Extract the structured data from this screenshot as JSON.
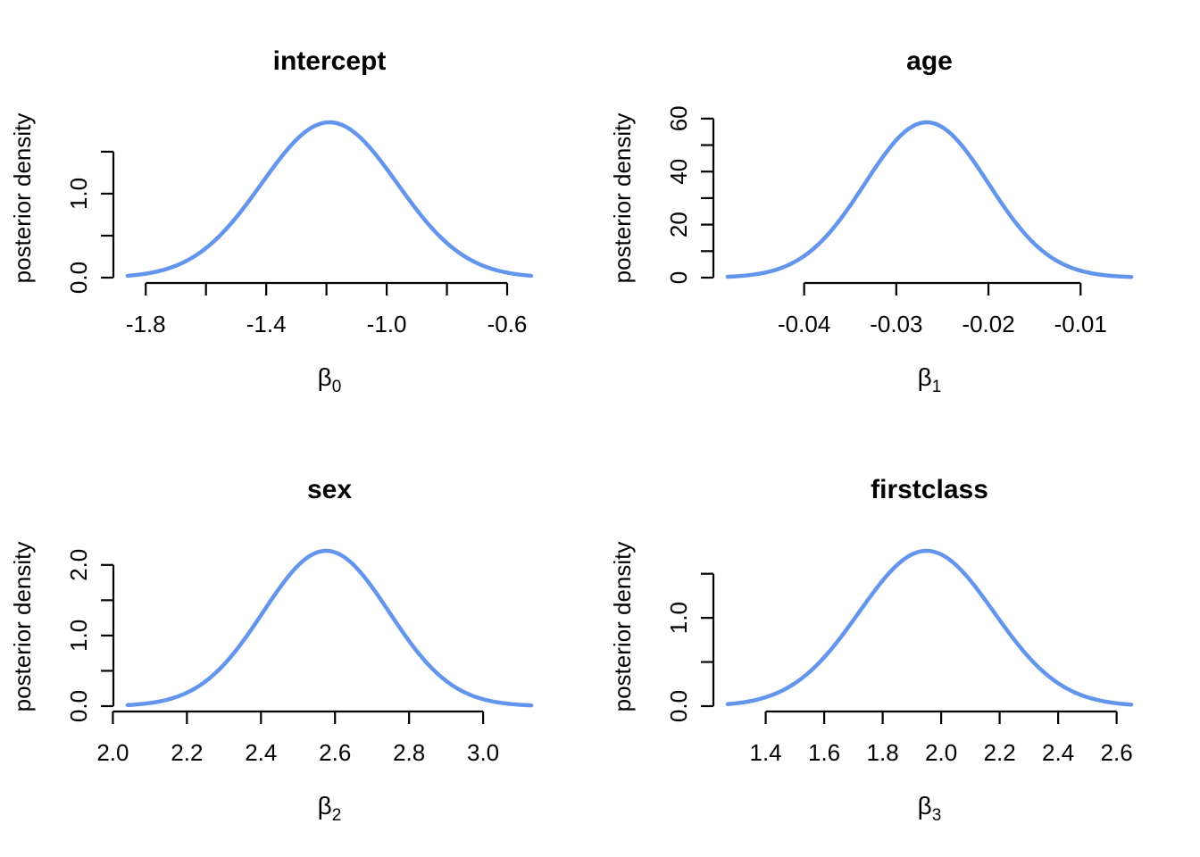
{
  "figure": {
    "layout": "2x2-grid",
    "background": "#ffffff",
    "curve_color": "#6495ED",
    "axis_color": "#000000",
    "text_color": "#000000",
    "shared_ylabel": "posterior density"
  },
  "chart_data": [
    {
      "type": "line",
      "subtype": "posterior-density-curve",
      "title": "intercept",
      "xlabel_base": "β",
      "xlabel_sub": "0",
      "ylabel": "posterior density",
      "legend": "none",
      "grid": "off",
      "x_domain": [
        -1.86,
        -0.52
      ],
      "ylim": [
        0,
        1.85
      ],
      "x_ticks": [
        {
          "value": -1.8,
          "label": "-1.8"
        },
        {
          "value": -1.6,
          "label": null
        },
        {
          "value": -1.4,
          "label": "-1.4"
        },
        {
          "value": -1.2,
          "label": null
        },
        {
          "value": -1.0,
          "label": "-1.0"
        },
        {
          "value": -0.8,
          "label": null
        },
        {
          "value": -0.6,
          "label": "-0.6"
        }
      ],
      "y_ticks": [
        {
          "value": 0.0,
          "label": "0.0"
        },
        {
          "value": 0.5,
          "label": null
        },
        {
          "value": 1.0,
          "label": "1.0"
        },
        {
          "value": 1.5,
          "label": null
        }
      ],
      "density": {
        "mean": -1.19,
        "sd": 0.225,
        "peak": 1.85
      }
    },
    {
      "type": "line",
      "subtype": "posterior-density-curve",
      "title": "age",
      "xlabel_base": "β",
      "xlabel_sub": "1",
      "ylabel": "posterior density",
      "legend": "none",
      "grid": "off",
      "x_domain": [
        -0.0483,
        -0.0045
      ],
      "ylim": [
        0,
        58.6
      ],
      "x_ticks": [
        {
          "value": -0.04,
          "label": "-0.04"
        },
        {
          "value": -0.03,
          "label": "-0.03"
        },
        {
          "value": -0.02,
          "label": "-0.02"
        },
        {
          "value": -0.01,
          "label": "-0.01"
        }
      ],
      "y_ticks": [
        {
          "value": 0,
          "label": "0"
        },
        {
          "value": 10,
          "label": null
        },
        {
          "value": 20,
          "label": "20"
        },
        {
          "value": 30,
          "label": null
        },
        {
          "value": 40,
          "label": "40"
        },
        {
          "value": 50,
          "label": null
        },
        {
          "value": 60,
          "label": "60"
        }
      ],
      "density": {
        "mean": -0.0267,
        "sd": 0.0067,
        "peak": 58.6
      }
    },
    {
      "type": "line",
      "subtype": "posterior-density-curve",
      "title": "sex",
      "xlabel_base": "β",
      "xlabel_sub": "2",
      "ylabel": "posterior density",
      "legend": "none",
      "grid": "off",
      "x_domain": [
        2.04,
        3.13
      ],
      "ylim": [
        0,
        2.2
      ],
      "x_ticks": [
        {
          "value": 2.0,
          "label": "2.0"
        },
        {
          "value": 2.2,
          "label": "2.2"
        },
        {
          "value": 2.4,
          "label": "2.4"
        },
        {
          "value": 2.6,
          "label": "2.6"
        },
        {
          "value": 2.8,
          "label": "2.8"
        },
        {
          "value": 3.0,
          "label": "3.0"
        }
      ],
      "y_ticks": [
        {
          "value": 0.0,
          "label": "0.0"
        },
        {
          "value": 0.5,
          "label": null
        },
        {
          "value": 1.0,
          "label": "1.0"
        },
        {
          "value": 1.5,
          "label": null
        },
        {
          "value": 2.0,
          "label": "2.0"
        }
      ],
      "density": {
        "mean": 2.576,
        "sd": 0.17,
        "peak": 2.2
      }
    },
    {
      "type": "line",
      "subtype": "posterior-density-curve",
      "title": "firstclass",
      "xlabel_base": "β",
      "xlabel_sub": "3",
      "ylabel": "posterior density",
      "legend": "none",
      "grid": "off",
      "x_domain": [
        1.27,
        2.65
      ],
      "ylim": [
        0,
        1.76
      ],
      "x_ticks": [
        {
          "value": 1.4,
          "label": "1.4"
        },
        {
          "value": 1.6,
          "label": "1.6"
        },
        {
          "value": 1.8,
          "label": "1.8"
        },
        {
          "value": 2.0,
          "label": "2.0"
        },
        {
          "value": 2.2,
          "label": "2.2"
        },
        {
          "value": 2.4,
          "label": "2.4"
        },
        {
          "value": 2.6,
          "label": "2.6"
        }
      ],
      "y_ticks": [
        {
          "value": 0.0,
          "label": "0.0"
        },
        {
          "value": 0.5,
          "label": null
        },
        {
          "value": 1.0,
          "label": "1.0"
        },
        {
          "value": 1.5,
          "label": null
        }
      ],
      "density": {
        "mean": 1.95,
        "sd": 0.23,
        "peak": 1.76
      }
    }
  ]
}
